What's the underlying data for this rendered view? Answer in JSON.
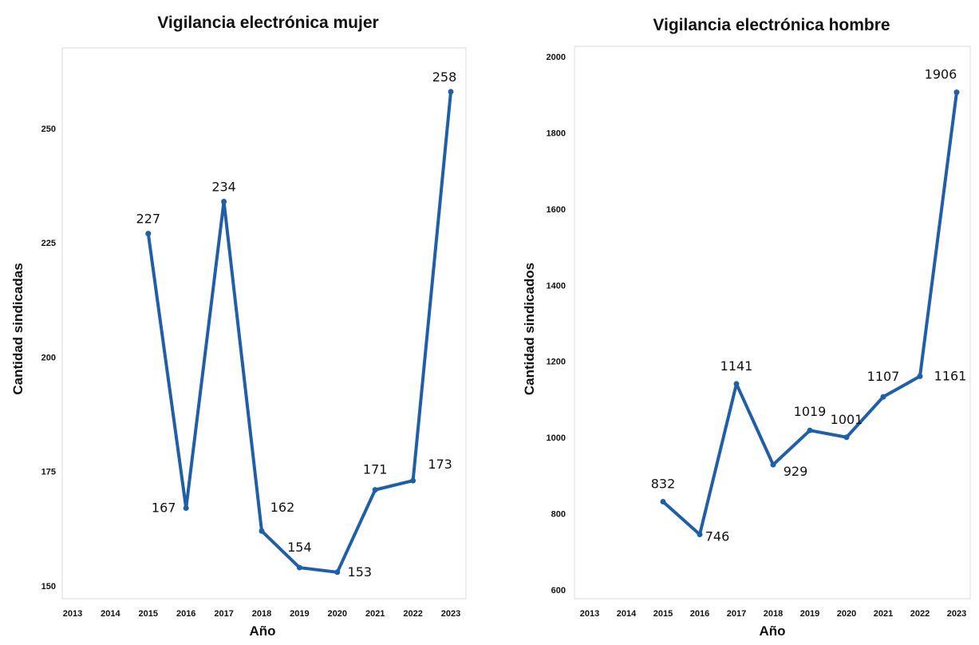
{
  "chart_data": [
    {
      "type": "line",
      "title": "Vigilancia electrónica mujer",
      "xlabel": "Año",
      "ylabel": "Cantidad sindicadas",
      "x": [
        2015,
        2016,
        2017,
        2018,
        2019,
        2020,
        2021,
        2022,
        2023
      ],
      "values": [
        227,
        167,
        234,
        162,
        154,
        153,
        171,
        173,
        258
      ],
      "data_labels": [
        "227",
        "167",
        "234",
        "162",
        "154",
        "153",
        "171",
        "173",
        "258"
      ],
      "x_ticks": [
        "2013",
        "2014",
        "2015",
        "2016",
        "2017",
        "2018",
        "2019",
        "2020",
        "2021",
        "2022",
        "2023"
      ],
      "y_ticks": [
        "150",
        "175",
        "200",
        "225",
        "250"
      ],
      "xlim": [
        2013,
        2023
      ],
      "ylim": [
        150,
        262
      ],
      "grid": false,
      "legend": "none",
      "color": "#1f5fa8"
    },
    {
      "type": "line",
      "title": "Vigilancia electrónica hombre",
      "xlabel": "Año",
      "ylabel": "Cantidad sindicados",
      "x": [
        2015,
        2016,
        2017,
        2018,
        2019,
        2020,
        2021,
        2022,
        2023
      ],
      "values": [
        832,
        746,
        1141,
        929,
        1019,
        1001,
        1107,
        1161,
        1906
      ],
      "data_labels": [
        "832",
        "746",
        "1141",
        "929",
        "1019",
        "1001",
        "1107",
        "1161",
        "1906"
      ],
      "x_ticks": [
        "2013",
        "2014",
        "2015",
        "2016",
        "2017",
        "2018",
        "2019",
        "2020",
        "2021",
        "2022",
        "2023"
      ],
      "y_ticks": [
        "600",
        "800",
        "1000",
        "1200",
        "1400",
        "1600",
        "1800",
        "2000"
      ],
      "xlim": [
        2013,
        2023
      ],
      "ylim": [
        590,
        2010
      ],
      "grid": false,
      "legend": "none",
      "color": "#1f5fa8"
    }
  ]
}
